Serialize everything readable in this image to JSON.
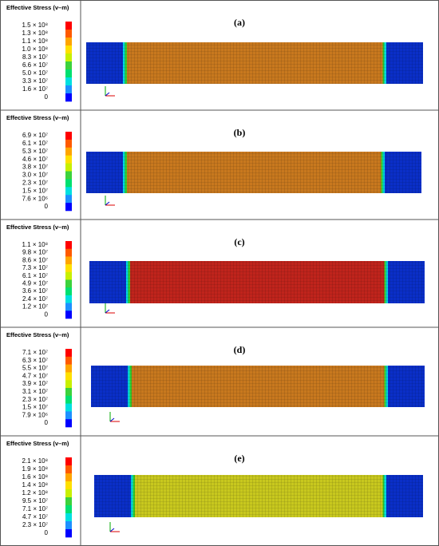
{
  "panels": [
    {
      "label": "(a)",
      "legend_title": "Effective Stress (v–m)",
      "color": "#c8781e",
      "legend_labels": [
        "1.5 × 10⁸",
        "1.3 × 10⁸",
        "1.1 × 10⁸",
        "1.0 × 10⁸",
        "8.3 × 10⁷",
        "6.6 × 10⁷",
        "5.0 × 10⁷",
        "3.3 × 10⁷",
        "1.6 × 10⁷",
        "0"
      ]
    },
    {
      "label": "(b)",
      "legend_title": "Effective Stress (v–m)",
      "color": "#c8781e",
      "legend_labels": [
        "6.9 × 10⁷",
        "6.1 × 10⁷",
        "5.3 × 10⁷",
        "4.6 × 10⁷",
        "3.8 × 10⁷",
        "3.0 × 10⁷",
        "2.3 × 10⁷",
        "1.5 × 10⁷",
        "7.6 × 10⁶",
        "0"
      ]
    },
    {
      "label": "(c)",
      "legend_title": "Effective Stress (v–m)",
      "color": "#c0241c",
      "legend_labels": [
        "1.1 × 10⁸",
        "9.8 × 10⁷",
        "8.6 × 10⁷",
        "7.3 × 10⁷",
        "6.1 × 10⁷",
        "4.9 × 10⁷",
        "3.6 × 10⁷",
        "2.4 × 10⁷",
        "1.2 × 10⁷",
        "0"
      ]
    },
    {
      "label": "(d)",
      "legend_title": "Effective Stress (v–m)",
      "color": "#c8781e",
      "legend_labels": [
        "7.1 × 10⁷",
        "6.3 × 10⁷",
        "5.5 × 10⁷",
        "4.7 × 10⁷",
        "3.9 × 10⁷",
        "3.1 × 10⁷",
        "2.3 × 10⁷",
        "1.5 × 10⁷",
        "7.9 × 10⁶",
        "0"
      ]
    },
    {
      "label": "(e)",
      "legend_title": "Effective Stress (v–m)",
      "color": "#c8c81e",
      "legend_labels": [
        "2.1 × 10⁸",
        "1.9 × 10⁸",
        "1.6 × 10⁸",
        "1.4 × 10⁸",
        "1.2 × 10⁸",
        "9.5 × 10⁷",
        "7.1 × 10⁷",
        "4.7 × 10⁷",
        "2.3 × 10⁷",
        "0"
      ]
    }
  ]
}
